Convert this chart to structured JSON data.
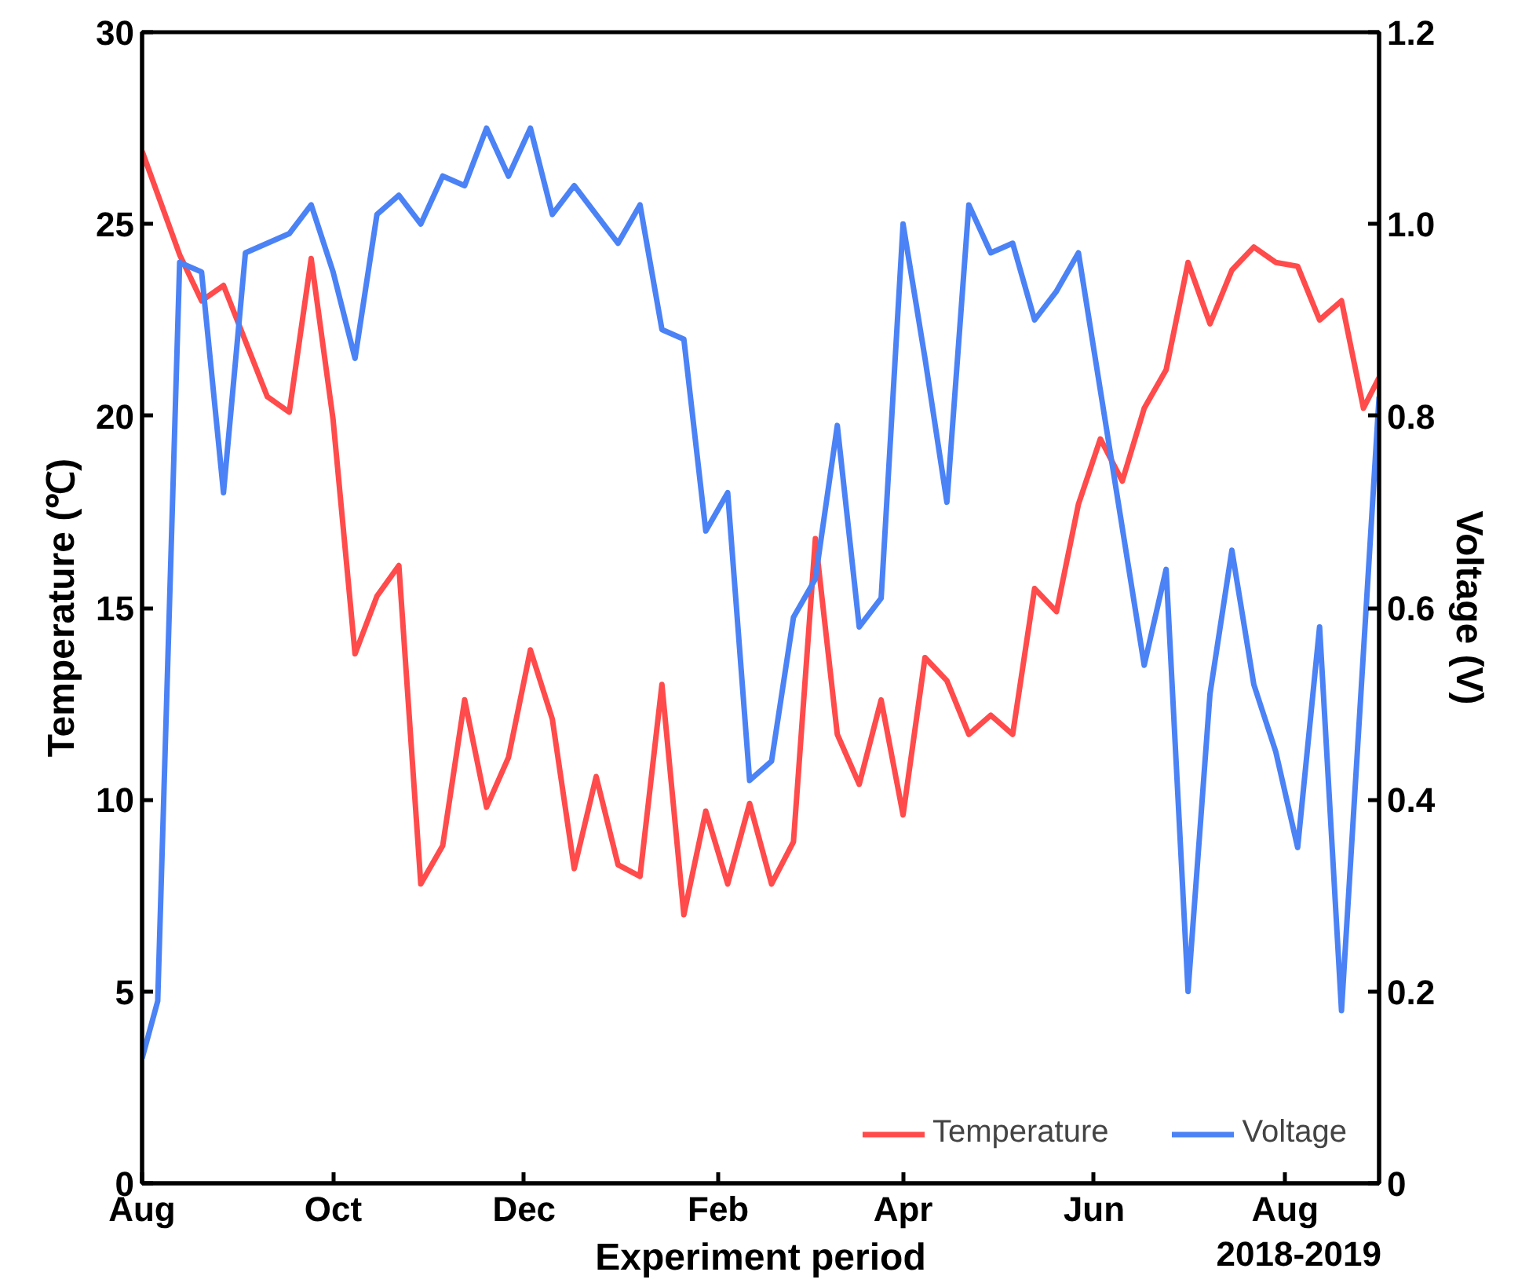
{
  "chart_data": {
    "type": "line",
    "xlabel": "Experiment period",
    "ylabel": "Temperature (℃)",
    "y2label": "Voltage (V)",
    "annotations": [
      "2018-2019"
    ],
    "xlim": [
      "2018-08-01",
      "2019-08-31"
    ],
    "xticks": [
      {
        "value": "2018-08-01",
        "label": "Aug"
      },
      {
        "value": "2018-10-01",
        "label": "Oct"
      },
      {
        "value": "2018-12-01",
        "label": "Dec"
      },
      {
        "value": "2019-02-01",
        "label": "Feb"
      },
      {
        "value": "2019-04-01",
        "label": "Apr"
      },
      {
        "value": "2019-06-01",
        "label": "Jun"
      },
      {
        "value": "2019-08-01",
        "label": "Aug"
      }
    ],
    "ylim": [
      0,
      30
    ],
    "yticks": [
      0,
      5,
      10,
      15,
      20,
      25,
      30
    ],
    "y2lim": [
      0,
      1.2
    ],
    "y2ticks": [
      0,
      0.2,
      0.4,
      0.6,
      0.8,
      {
        "value": 1.0,
        "label": "1.0"
      },
      1.2
    ],
    "grid": false,
    "legend": "bottom right",
    "line_style": "solid",
    "marker": "none",
    "series": [
      {
        "name": "Temperature",
        "color": "#ff4b4b",
        "x": [
          "2018-08-01",
          "2018-08-13",
          "2018-08-20",
          "2018-08-27",
          "2018-09-10",
          "2018-09-17",
          "2018-09-24",
          "2018-10-01",
          "2018-10-08",
          "2018-10-15",
          "2018-10-22",
          "2018-10-29",
          "2018-11-05",
          "2018-11-12",
          "2018-11-19",
          "2018-11-26",
          "2018-12-03",
          "2018-12-10",
          "2018-12-17",
          "2018-12-24",
          "2018-12-31",
          "2019-01-07",
          "2019-01-14",
          "2019-01-21",
          "2019-01-28",
          "2019-02-04",
          "2019-02-11",
          "2019-02-18",
          "2019-02-25",
          "2019-03-04",
          "2019-03-11",
          "2019-03-18",
          "2019-03-25",
          "2019-04-01",
          "2019-04-08",
          "2019-04-15",
          "2019-04-22",
          "2019-04-29",
          "2019-05-06",
          "2019-05-13",
          "2019-05-20",
          "2019-05-27",
          "2019-06-03",
          "2019-06-10",
          "2019-06-17",
          "2019-06-24",
          "2019-07-01",
          "2019-07-08",
          "2019-07-15",
          "2019-07-22",
          "2019-07-29",
          "2019-08-05",
          "2019-08-12",
          "2019-08-19",
          "2019-08-26",
          "2019-08-31"
        ],
        "values": [
          26.9,
          24.2,
          23.0,
          23.4,
          20.5,
          20.1,
          24.1,
          19.9,
          13.8,
          15.3,
          16.1,
          7.8,
          8.8,
          12.6,
          9.8,
          11.1,
          13.9,
          12.1,
          8.2,
          10.6,
          8.3,
          8.0,
          13.0,
          7.0,
          9.7,
          7.8,
          9.9,
          7.8,
          8.9,
          16.8,
          11.7,
          10.4,
          12.6,
          9.6,
          13.7,
          13.1,
          11.7,
          12.2,
          11.7,
          15.5,
          14.9,
          17.7,
          19.4,
          18.3,
          20.2,
          21.2,
          24.0,
          22.4,
          23.8,
          24.4,
          24.0,
          23.9,
          22.5,
          23.0,
          20.2,
          21.0
        ]
      },
      {
        "name": "Voltage",
        "color": "#4b82f5",
        "axis": "y2",
        "x": [
          "2018-08-01",
          "2018-08-06",
          "2018-08-13",
          "2018-08-20",
          "2018-08-27",
          "2018-09-03",
          "2018-09-10",
          "2018-09-17",
          "2018-09-24",
          "2018-10-01",
          "2018-10-08",
          "2018-10-15",
          "2018-10-22",
          "2018-10-29",
          "2018-11-05",
          "2018-11-12",
          "2018-11-19",
          "2018-11-26",
          "2018-12-03",
          "2018-12-10",
          "2018-12-17",
          "2018-12-24",
          "2018-12-31",
          "2019-01-07",
          "2019-01-14",
          "2019-01-21",
          "2019-01-28",
          "2019-02-04",
          "2019-02-11",
          "2019-02-18",
          "2019-02-25",
          "2019-03-04",
          "2019-03-11",
          "2019-03-18",
          "2019-03-25",
          "2019-04-01",
          "2019-04-08",
          "2019-04-15",
          "2019-04-22",
          "2019-04-29",
          "2019-05-06",
          "2019-05-13",
          "2019-05-20",
          "2019-05-27",
          "2019-06-17",
          "2019-06-24",
          "2019-07-01",
          "2019-07-08",
          "2019-07-15",
          "2019-07-22",
          "2019-07-29",
          "2019-08-05",
          "2019-08-12",
          "2019-08-19",
          "2019-08-31"
        ],
        "values": [
          0.13,
          0.19,
          0.96,
          0.95,
          0.72,
          0.97,
          0.98,
          0.99,
          1.02,
          0.95,
          0.86,
          1.01,
          1.03,
          1.0,
          1.05,
          1.04,
          1.1,
          1.05,
          1.1,
          1.01,
          1.04,
          1.01,
          0.98,
          1.02,
          0.89,
          0.88,
          0.68,
          0.72,
          0.42,
          0.44,
          0.59,
          0.63,
          0.79,
          0.58,
          0.61,
          1.0,
          0.86,
          0.71,
          1.02,
          0.97,
          0.98,
          0.9,
          0.93,
          0.97,
          0.54,
          0.64,
          0.2,
          0.51,
          0.66,
          0.52,
          0.45,
          0.35,
          0.58,
          0.18,
          0.82
        ]
      }
    ]
  }
}
